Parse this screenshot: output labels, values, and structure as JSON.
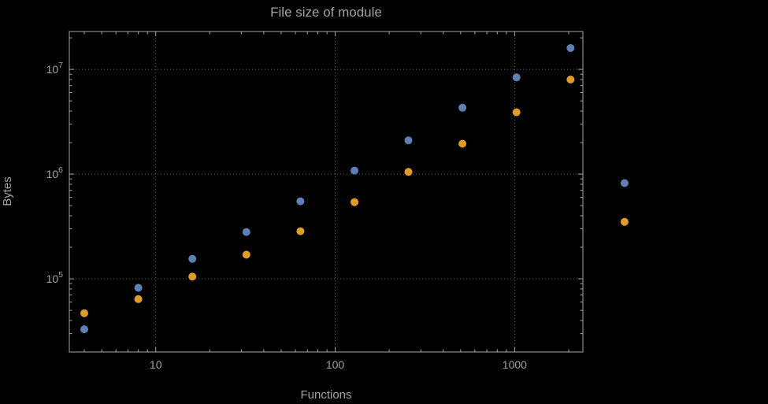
{
  "page": {
    "background": "#000000"
  },
  "colors": {
    "text": "#a2a2a2",
    "frame": "#a6a6a6",
    "grid": "#5f5f5f",
    "series_blue": "#5e81b5",
    "series_orange": "#e19c24"
  },
  "chart_data": {
    "type": "scatter",
    "title": "File size of module",
    "xlabel": "Functions",
    "ylabel": "Bytes",
    "x_scale": "log",
    "y_scale": "log",
    "xlim": [
      3.3,
      2400
    ],
    "ylim": [
      20000,
      23000000
    ],
    "x_ticks": [
      10,
      100,
      1000
    ],
    "y_ticks": [
      100000,
      1000000,
      10000000
    ],
    "grid": true,
    "legend": false,
    "series": [
      {
        "name": "series-blue",
        "color": "#5e81b5",
        "points": [
          [
            4,
            33000
          ],
          [
            8,
            82000
          ],
          [
            16,
            155000
          ],
          [
            32,
            280000
          ],
          [
            64,
            550000
          ],
          [
            128,
            1080000
          ],
          [
            256,
            2100000
          ],
          [
            512,
            4300000
          ],
          [
            1024,
            8400000
          ],
          [
            2048,
            16000000
          ],
          [
            4096,
            820000
          ]
        ]
      },
      {
        "name": "series-orange",
        "color": "#e19c24",
        "points": [
          [
            4,
            47000
          ],
          [
            8,
            64000
          ],
          [
            16,
            105000
          ],
          [
            32,
            170000
          ],
          [
            64,
            285000
          ],
          [
            128,
            540000
          ],
          [
            256,
            1050000
          ],
          [
            512,
            1950000
          ],
          [
            1024,
            3900000
          ],
          [
            2048,
            8000000
          ],
          [
            4096,
            350000
          ]
        ]
      }
    ]
  }
}
